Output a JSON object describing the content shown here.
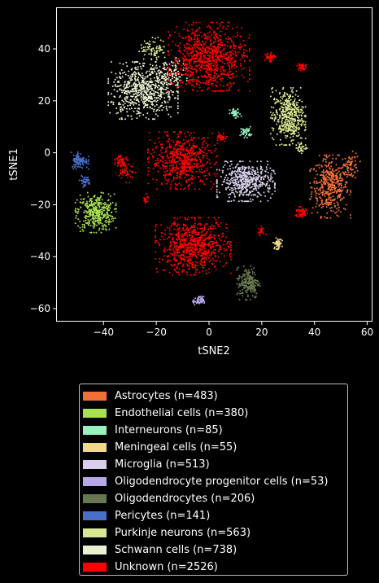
{
  "chart_data": {
    "type": "scatter",
    "title": "",
    "xlabel": "tSNE2",
    "ylabel": "tSNE1",
    "xlim": [
      -58,
      62
    ],
    "ylim": [
      -65,
      56
    ],
    "xticks": [
      -40,
      -20,
      0,
      20,
      40,
      60
    ],
    "yticks": [
      -60,
      -40,
      -20,
      0,
      20,
      40
    ],
    "grid": false,
    "legend_position": "bottom-below-chart",
    "background": "#000000",
    "series": [
      {
        "name": "Astrocytes (n=483)",
        "color": "#f07038",
        "clusters": [
          {
            "cx": 46,
            "cy": -13,
            "sx": 3.5,
            "sy": 5.5,
            "n": 420
          },
          {
            "cx": 54,
            "cy": -5,
            "sx": 1.5,
            "sy": 2.5,
            "n": 63
          }
        ]
      },
      {
        "name": "Endothelial cells (n=380)",
        "color": "#a8e050",
        "clusters": [
          {
            "cx": -43,
            "cy": -23,
            "sx": 3.5,
            "sy": 3.5,
            "n": 380
          }
        ]
      },
      {
        "name": "Interneurons (n=85)",
        "color": "#98f0c0",
        "clusters": [
          {
            "cx": 10,
            "cy": 15,
            "sx": 1,
            "sy": 1,
            "n": 45
          },
          {
            "cx": 14,
            "cy": 8,
            "sx": 1,
            "sy": 1,
            "n": 40
          }
        ]
      },
      {
        "name": "Meningeal cells (n=55)",
        "color": "#f0d888",
        "clusters": [
          {
            "cx": 26,
            "cy": -35,
            "sx": 0.8,
            "sy": 1,
            "n": 55
          }
        ]
      },
      {
        "name": "Microglia (n=513)",
        "color": "#d8d0ea",
        "clusters": [
          {
            "cx": 14,
            "cy": -11,
            "sx": 5,
            "sy": 3.5,
            "n": 513
          }
        ]
      },
      {
        "name": "Oligodendrocyte progenitor cells (n=53)",
        "color": "#b8a8e8",
        "clusters": [
          {
            "cx": -4,
            "cy": -57,
            "sx": 1,
            "sy": 0.8,
            "n": 53
          }
        ]
      },
      {
        "name": "Oligodendrocytes (n=206)",
        "color": "#687850",
        "clusters": [
          {
            "cx": 15,
            "cy": -50,
            "sx": 2,
            "sy": 3,
            "n": 206
          }
        ]
      },
      {
        "name": "Pericytes (n=141)",
        "color": "#4870c8",
        "clusters": [
          {
            "cx": -49,
            "cy": -3,
            "sx": 1.5,
            "sy": 1.5,
            "n": 100
          },
          {
            "cx": -47,
            "cy": -11,
            "sx": 1,
            "sy": 1,
            "n": 41
          }
        ]
      },
      {
        "name": "Purkinje neurons (n=563)",
        "color": "#d8e890",
        "clusters": [
          {
            "cx": 30,
            "cy": 14,
            "sx": 3,
            "sy": 5,
            "n": 450
          },
          {
            "cx": -21,
            "cy": 40,
            "sx": 2.5,
            "sy": 2,
            "n": 80
          },
          {
            "cx": 35,
            "cy": 2,
            "sx": 1,
            "sy": 1,
            "n": 33
          }
        ]
      },
      {
        "name": "Schwann cells (n=738)",
        "color": "#e8f0d0",
        "clusters": [
          {
            "cx": -25,
            "cy": 24,
            "sx": 6,
            "sy": 5,
            "n": 620
          },
          {
            "cx": -15,
            "cy": 30,
            "sx": 3,
            "sy": 3,
            "n": 118
          }
        ]
      },
      {
        "name": "Unknown (n=2526)",
        "color": "#ff0000",
        "clusters": [
          {
            "cx": 0,
            "cy": 37,
            "sx": 7,
            "sy": 6,
            "n": 800
          },
          {
            "cx": -10,
            "cy": -3,
            "sx": 6,
            "sy": 5,
            "n": 600
          },
          {
            "cx": -6,
            "cy": -36,
            "sx": 6.5,
            "sy": 5,
            "n": 750
          },
          {
            "cx": -33,
            "cy": -3,
            "sx": 1.2,
            "sy": 1.2,
            "n": 60
          },
          {
            "cx": 23,
            "cy": 37,
            "sx": 1,
            "sy": 1,
            "n": 50
          },
          {
            "cx": 35,
            "cy": 33,
            "sx": 0.8,
            "sy": 0.8,
            "n": 40
          },
          {
            "cx": 35,
            "cy": -23,
            "sx": 1.2,
            "sy": 1,
            "n": 60
          },
          {
            "cx": -31,
            "cy": -8,
            "sx": 1.5,
            "sy": 1.5,
            "n": 40
          },
          {
            "cx": 5,
            "cy": 6,
            "sx": 0.8,
            "sy": 0.8,
            "n": 30
          },
          {
            "cx": -5,
            "cy": 28,
            "sx": 5,
            "sy": 2,
            "n": 60
          },
          {
            "cx": 20,
            "cy": -30,
            "sx": 0.8,
            "sy": 0.8,
            "n": 20
          },
          {
            "cx": -24,
            "cy": -18,
            "sx": 0.5,
            "sy": 1,
            "n": 16
          }
        ]
      }
    ]
  },
  "legend": {
    "items": [
      {
        "label": "Astrocytes (n=483)",
        "color": "#f07038"
      },
      {
        "label": "Endothelial cells (n=380)",
        "color": "#a8e050"
      },
      {
        "label": "Interneurons (n=85)",
        "color": "#98f0c0"
      },
      {
        "label": "Meningeal cells (n=55)",
        "color": "#f0d888"
      },
      {
        "label": "Microglia (n=513)",
        "color": "#d8d0ea"
      },
      {
        "label": "Oligodendrocyte progenitor cells (n=53)",
        "color": "#b8a8e8"
      },
      {
        "label": "Oligodendrocytes (n=206)",
        "color": "#687850"
      },
      {
        "label": "Pericytes (n=141)",
        "color": "#4870c8"
      },
      {
        "label": "Purkinje neurons (n=563)",
        "color": "#d8e890"
      },
      {
        "label": "Schwann cells (n=738)",
        "color": "#e8f0d0"
      },
      {
        "label": "Unknown (n=2526)",
        "color": "#ff0000"
      }
    ]
  }
}
